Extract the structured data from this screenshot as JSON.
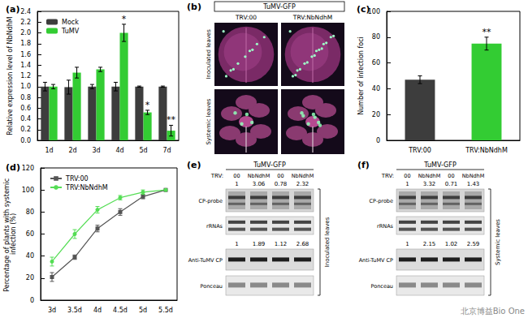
{
  "chart_data": [
    {
      "type": "bar",
      "title": "(a)",
      "y_label": "Relative expression level of NbNdhM",
      "categories": [
        "1d",
        "2d",
        "3d",
        "4d",
        "5d",
        "7d"
      ],
      "series": [
        {
          "name": "Mock",
          "color": "#3d3d3d",
          "values": [
            1.0,
            0.99,
            1.0,
            1.0,
            1.0,
            1.0
          ],
          "errors": [
            0.08,
            0.13,
            0.04,
            0.08,
            0.01,
            0.01
          ]
        },
        {
          "name": "TuMV",
          "color": "#33cc33",
          "values": [
            1.0,
            1.26,
            1.32,
            2.0,
            0.52,
            0.18
          ],
          "errors": [
            0.04,
            0.1,
            0.04,
            0.16,
            0.04,
            0.1
          ],
          "significance": [
            null,
            null,
            null,
            "*",
            "*",
            "**"
          ]
        }
      ],
      "ylim": [
        0,
        2.4
      ],
      "yticks": [
        {
          "value": 0,
          "label": "0.0"
        },
        0.2,
        0.4,
        0.6,
        0.8,
        {
          "value": 1,
          "label": "1.0"
        },
        1.2,
        1.4,
        1.6,
        1.8,
        {
          "value": 2,
          "label": "2.0"
        },
        2.2,
        2.4
      ],
      "grid": false,
      "legend": "top-left"
    },
    {
      "type": "bar",
      "title": "(c)",
      "y_label": "Number of infection foci",
      "categories": [
        "TRV:00",
        "TRV:NbNdhM"
      ],
      "values": [
        47,
        75
      ],
      "errors": [
        3,
        5
      ],
      "colors": [
        "#3d3d3d",
        "#33cc33"
      ],
      "significance": [
        null,
        "**"
      ],
      "ylim": [
        0,
        100
      ],
      "yticks": [
        0,
        20,
        40,
        60,
        80,
        100
      ],
      "grid": false
    },
    {
      "type": "line",
      "title": "(d)",
      "y_label": "Percentage of plants with systemic infection (%)",
      "categories": [
        "3d",
        "3.5d",
        "4d",
        "4.5d",
        "5d",
        "5.5d"
      ],
      "series": [
        {
          "name": "TRV:00",
          "color": "#555555",
          "marker": "square",
          "values": [
            21,
            39,
            65,
            80,
            94,
            100
          ],
          "errors": [
            4,
            2,
            3,
            3,
            2,
            0
          ]
        },
        {
          "name": "TRV:NbNdhM",
          "color": "#55dd55",
          "marker": "circle",
          "values": [
            35,
            60,
            82,
            93,
            98,
            100
          ],
          "errors": [
            4,
            4,
            3,
            2,
            2,
            0
          ]
        }
      ],
      "ylim": [
        0,
        120
      ],
      "yticks": [
        0,
        20,
        40,
        60,
        80,
        100,
        120
      ],
      "grid": false,
      "legend": "top-left"
    }
  ],
  "images": {
    "title": "(b)",
    "header": "TuMV-GFP",
    "columns": [
      "TRV:00",
      "TRV:NbNdhM"
    ],
    "rows": [
      "Inoculated leaves",
      "Systemic leaves"
    ]
  },
  "blots": [
    {
      "title": "(e)",
      "header": "TuMV-GFP",
      "lane_title": "TRV:",
      "lanes": [
        "00",
        "NbNdhM",
        "00",
        "NbNdhM"
      ],
      "tissue": "Inoculated leaves",
      "groups": [
        {
          "quantification": [
            1,
            3.06,
            0.78,
            2.32
          ],
          "rows": [
            "CP-probe",
            "rRNAs"
          ]
        },
        {
          "quantification": [
            1,
            1.89,
            1.12,
            2.68
          ],
          "rows": [
            "Anti-TuMV CP",
            "Ponceau"
          ]
        }
      ]
    },
    {
      "title": "(f)",
      "header": "TuMV-GFP",
      "lane_title": "TRV:",
      "lanes": [
        "00",
        "NbNdhM",
        "00",
        "NbNdhM"
      ],
      "tissue": "Systemic leaves",
      "groups": [
        {
          "quantification": [
            1,
            3.32,
            0.71,
            1.43
          ],
          "rows": [
            "CP-probe",
            "rRNAs"
          ]
        },
        {
          "quantification": [
            1,
            2.15,
            1.02,
            2.59
          ],
          "rows": [
            "Anti-TuMV CP",
            "Ponceau"
          ]
        }
      ]
    }
  ],
  "watermark": "北京博益Bio One"
}
